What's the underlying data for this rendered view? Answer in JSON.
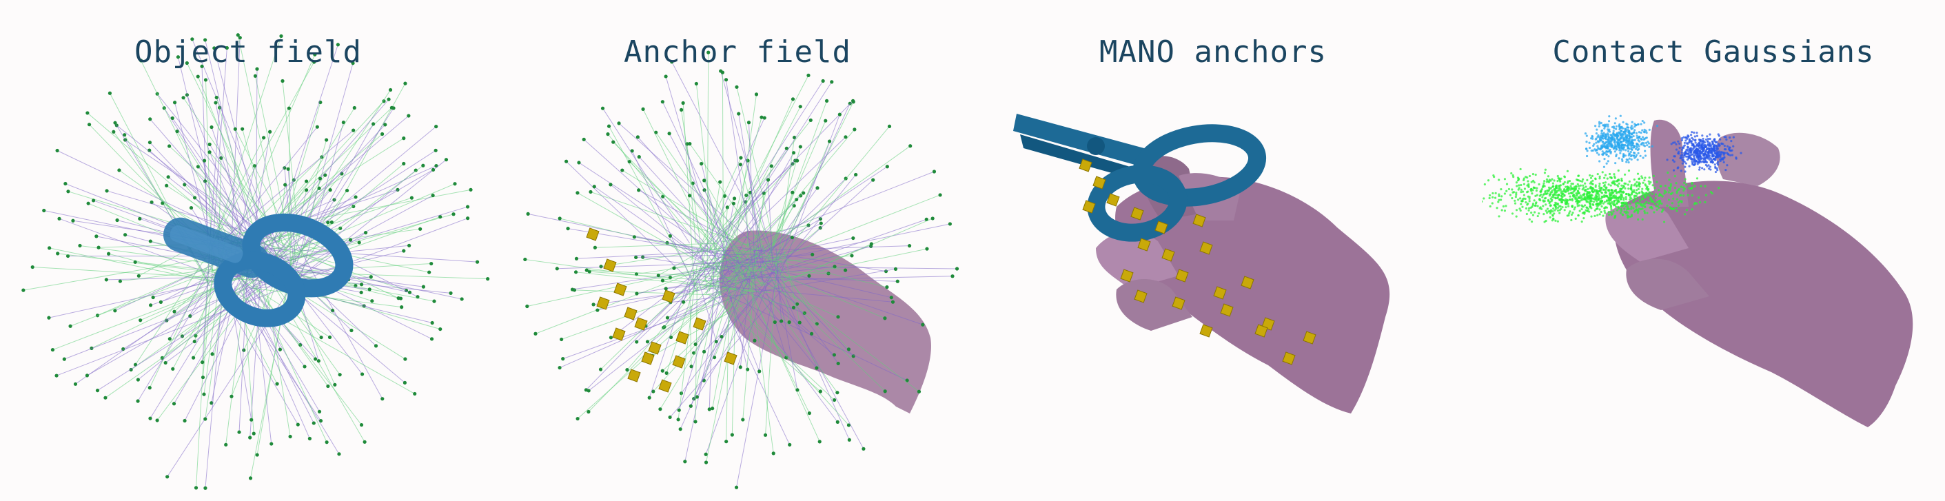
{
  "panels": [
    {
      "title": "Object field"
    },
    {
      "title": "Anchor field"
    },
    {
      "title": "MANO anchors"
    },
    {
      "title": "Contact Gaussians"
    }
  ],
  "colors": {
    "object": "#2f7bb3",
    "object_dark": "#12577f",
    "hand": "#9c7398",
    "hand_dark": "#7a5677",
    "anchor": "#c9a909",
    "point": "#1f8a3a",
    "line_green": "#5fcf7a",
    "line_purple": "#8069c8",
    "gauss_blue": "#2a58e8",
    "gauss_cyan": "#29a8ef",
    "gauss_green": "#2cf03a"
  }
}
